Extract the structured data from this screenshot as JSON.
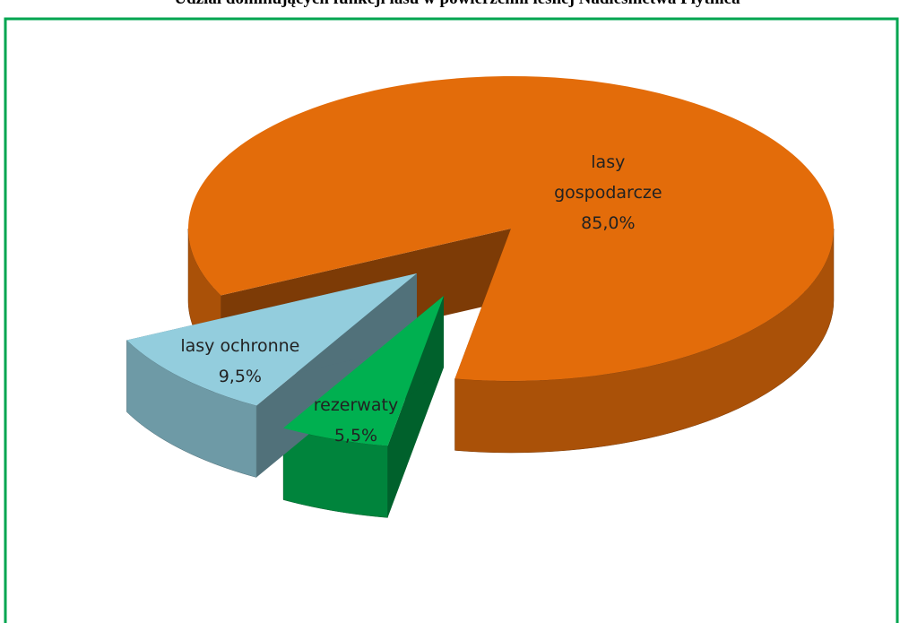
{
  "chart_data": {
    "type": "pie3d",
    "title": "Udział dominujących funkcji lasu w powierzchni leśnej  Nadleśnictwa Płytnica",
    "categories": [
      "lasy gospodarcze",
      "rezerwaty",
      "lasy ochronne"
    ],
    "values": [
      85.0,
      5.5,
      9.5
    ],
    "value_labels": [
      "85,0%",
      "5,5%",
      "9,5%"
    ],
    "colors": [
      "#e36c0a",
      "#00b050",
      "#93cddd"
    ]
  }
}
